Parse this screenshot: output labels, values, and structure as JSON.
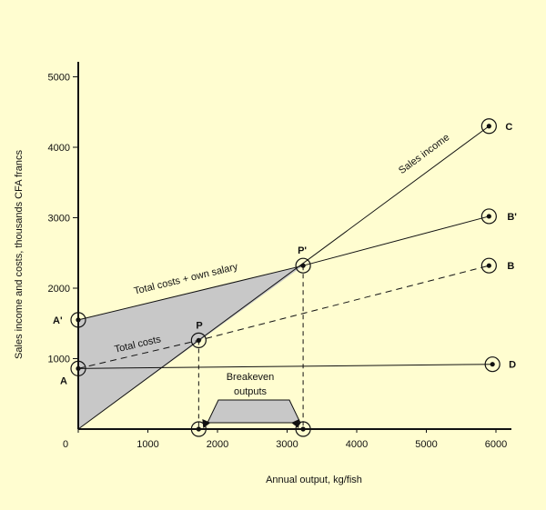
{
  "chart_data": {
    "type": "line",
    "title": "",
    "xlabel": "Annual output, kg/fish",
    "ylabel": "Sales income and costs, thousands CFA francs",
    "xlim": [
      0,
      6000
    ],
    "ylim": [
      0,
      5000
    ],
    "x_ticks": [
      0,
      1000,
      2000,
      3000,
      4000,
      5000,
      6000
    ],
    "y_ticks": [
      1000,
      2000,
      3000,
      4000,
      5000
    ],
    "grid": false,
    "colors": {
      "background": "#fffdd0",
      "shade": "#c8c8c8",
      "ink": "#111111"
    },
    "series": [
      {
        "label": "Sales income",
        "style": "solid",
        "points": [
          [
            0,
            0
          ],
          [
            5900,
            4300
          ]
        ]
      },
      {
        "label": "Total costs + own salary",
        "style": "solid",
        "points": [
          [
            0,
            1550
          ],
          [
            3230,
            2320
          ],
          [
            5900,
            3020
          ]
        ]
      },
      {
        "label": "Total costs",
        "style": "dashed",
        "points": [
          [
            0,
            860
          ],
          [
            1730,
            1260
          ],
          [
            5900,
            2320
          ]
        ]
      },
      {
        "label": "",
        "style": "solid",
        "points": [
          [
            0,
            860
          ],
          [
            5950,
            920
          ]
        ]
      }
    ],
    "points": [
      {
        "name": "A",
        "x": 0,
        "y": 860
      },
      {
        "name": "A'",
        "x": 0,
        "y": 1550
      },
      {
        "name": "P",
        "x": 1730,
        "y": 1260
      },
      {
        "name": "P'",
        "x": 3230,
        "y": 2320
      },
      {
        "name": "B",
        "x": 5900,
        "y": 2320
      },
      {
        "name": "B'",
        "x": 5900,
        "y": 3020
      },
      {
        "name": "C",
        "x": 5900,
        "y": 4300
      },
      {
        "name": "D",
        "x": 5950,
        "y": 920
      },
      {
        "name": "",
        "x": 1730,
        "y": 0
      },
      {
        "name": "",
        "x": 3230,
        "y": 0
      }
    ],
    "annotations": {
      "breakeven": "Breakeven outputs",
      "breakeven_points": [
        1730,
        3230
      ]
    }
  }
}
